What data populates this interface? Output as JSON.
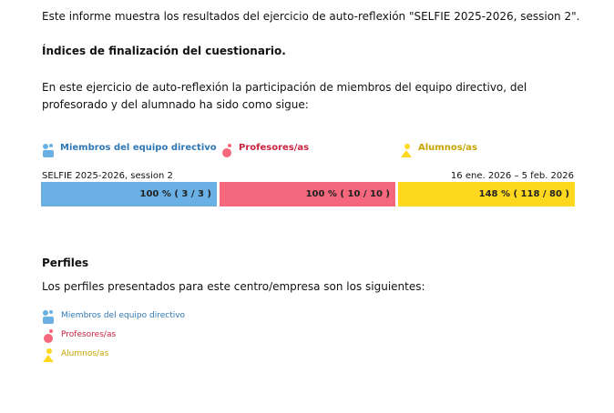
{
  "intro": "Este informe muestra los resultados del ejercicio de auto-reflexión \"SELFIE 2025-2026, session 2\".",
  "completion": {
    "heading": "Índices de finalización del cuestionario.",
    "text": "En este ejercicio de auto-reflexión la participación de miembros del equipo directivo, del profesorado y del alumnado ha sido como sigue:",
    "legend": [
      "Miembros del equipo directivo",
      "Profesores/as",
      "Alumnos/as"
    ],
    "exercise": "SELFIE 2025-2026, session 2",
    "dates": "16 ene. 2026 – 5 feb. 2026",
    "segments": [
      "100 % ( 3 / 3 )",
      "100 % ( 10 / 10 )",
      "148 % ( 118 / 80 )"
    ]
  },
  "profiles": {
    "heading": "Perfiles",
    "text": "Los perfiles presentados para este centro/empresa son los siguientes:",
    "items": [
      "Miembros del equipo directivo",
      "Profesores/as",
      "Alumnos/as"
    ]
  }
}
